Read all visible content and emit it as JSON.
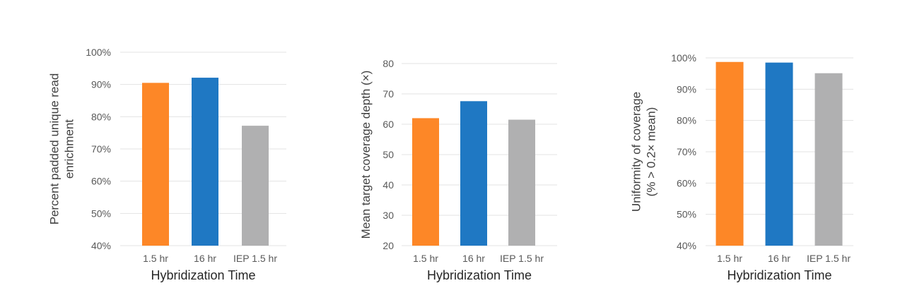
{
  "chart_data": [
    {
      "type": "bar",
      "categories": [
        "1.5 hr",
        "16 hr",
        "IEP 1.5 hr"
      ],
      "values": [
        90.5,
        92.1,
        77.2
      ],
      "colors": [
        "#fd8727",
        "#1f78c3",
        "#b0b0b1"
      ],
      "xlabel": "Hybridization Time",
      "ylabel": [
        "Percent padded unique read",
        "enrichment"
      ],
      "ylim": [
        40,
        100
      ],
      "yticks": [
        40,
        50,
        60,
        70,
        80,
        90,
        100
      ],
      "ytick_labels": [
        "40%",
        "50%",
        "60%",
        "70%",
        "80%",
        "90%",
        "100%"
      ],
      "grid": true
    },
    {
      "type": "bar",
      "categories": [
        "1.5 hr",
        "16 hr",
        "IEP 1.5 hr"
      ],
      "values": [
        62.0,
        67.6,
        61.5
      ],
      "colors": [
        "#fd8727",
        "#1f78c3",
        "#b0b0b1"
      ],
      "xlabel": "Hybridization Time",
      "ylabel": [
        "Mean target coverage depth (×)"
      ],
      "ylim": [
        20,
        80
      ],
      "yticks": [
        20,
        30,
        40,
        50,
        60,
        70,
        80
      ],
      "ytick_labels": [
        "20",
        "30",
        "40",
        "50",
        "60",
        "70",
        "80"
      ],
      "grid": true
    },
    {
      "type": "bar",
      "categories": [
        "1.5 hr",
        "16 hr",
        "IEP 1.5 hr"
      ],
      "values": [
        98.7,
        98.5,
        95.1
      ],
      "colors": [
        "#fd8727",
        "#1f78c3",
        "#b0b0b1"
      ],
      "xlabel": "Hybridization Time",
      "ylabel": [
        "Uniformity of coverage",
        "(% > 0.2× mean)"
      ],
      "ylim": [
        40,
        100
      ],
      "yticks": [
        40,
        50,
        60,
        70,
        80,
        90,
        100
      ],
      "ytick_labels": [
        "40%",
        "50%",
        "60%",
        "70%",
        "80%",
        "90%",
        "100%"
      ],
      "grid": true
    }
  ]
}
